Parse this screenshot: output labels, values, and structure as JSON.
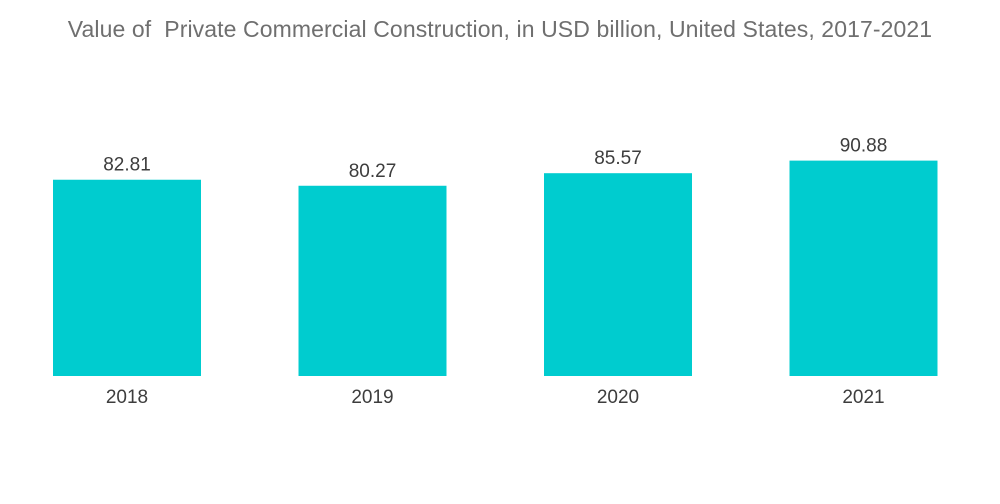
{
  "chart_data": {
    "type": "bar",
    "title": "Value of  Private Commercial Construction, in USD billion, United States, 2017-2021",
    "xlabel": "",
    "ylabel": "",
    "categories": [
      "2018",
      "2019",
      "2020",
      "2021"
    ],
    "values": [
      82.81,
      80.27,
      85.57,
      90.88
    ],
    "value_labels": [
      "82.81",
      "80.27",
      "85.57",
      "90.88"
    ],
    "ylim": [
      0,
      100
    ],
    "grid": false,
    "legend": "none",
    "bar_color": "#00cccf"
  }
}
